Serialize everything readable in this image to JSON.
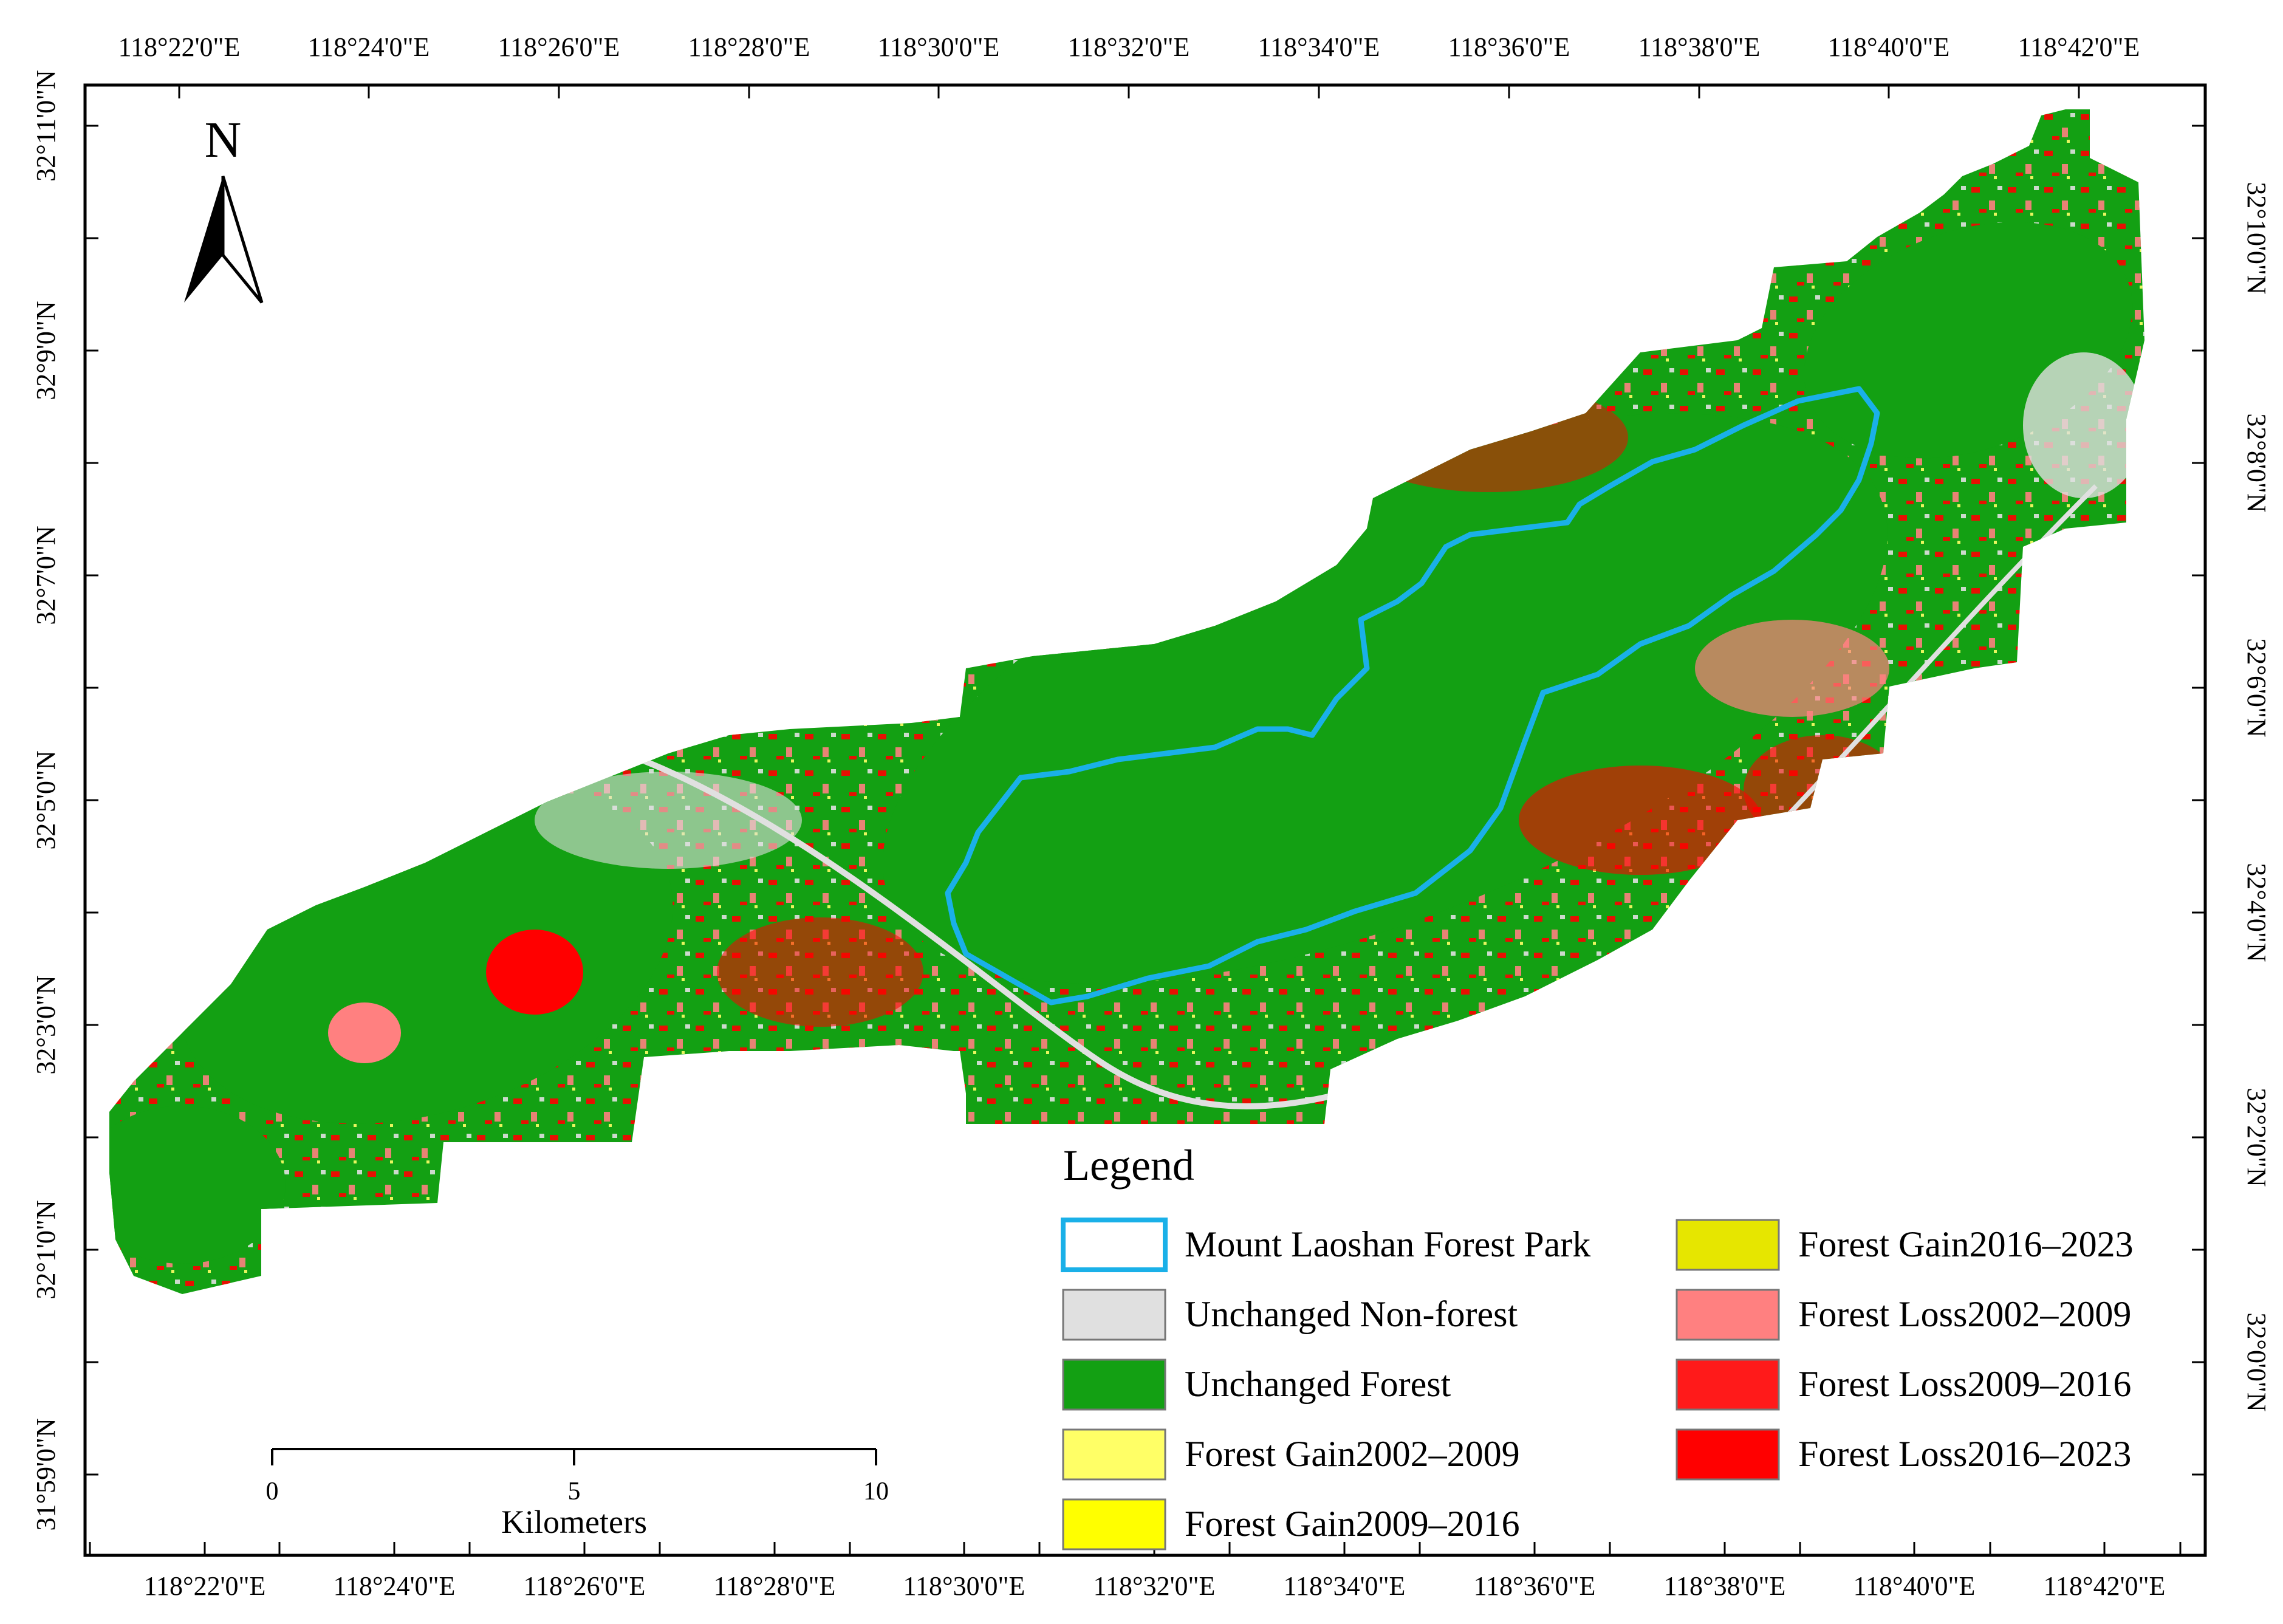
{
  "map": {
    "top_labels": [
      "118°22'0\"E",
      "118°24'0\"E",
      "118°26'0\"E",
      "118°28'0\"E",
      "118°30'0\"E",
      "118°32'0\"E",
      "118°34'0\"E",
      "118°36'0\"E",
      "118°38'0\"E",
      "118°40'0\"E",
      "118°42'0\"E"
    ],
    "bottom_labels": [
      "118°22'0\"E",
      "118°24'0\"E",
      "118°26'0\"E",
      "118°28'0\"E",
      "118°30'0\"E",
      "118°32'0\"E",
      "118°34'0\"E",
      "118°36'0\"E",
      "118°38'0\"E",
      "118°40'0\"E",
      "118°42'0\"E"
    ],
    "left_labels": [
      "32°11'0\"N",
      "32°9'0\"N",
      "32°7'0\"N",
      "32°5'0\"N",
      "32°3'0\"N",
      "32°1'0\"N",
      "31°59'0\"N"
    ],
    "right_labels": [
      "32°10'0\"N",
      "32°8'0\"N",
      "32°6'0\"N",
      "32°4'0\"N",
      "32°2'0\"N",
      "32°0'0\"N"
    ],
    "north_label": "N"
  },
  "scale_bar": {
    "ticks": [
      "0",
      "5",
      "10"
    ],
    "unit": "Kilometers"
  },
  "legend": {
    "title": "Legend",
    "items": [
      {
        "label": "Mount Laoshan Forest Park",
        "color": "#ffffff",
        "stroke": "#1ab0e8"
      },
      {
        "label": "Unchanged Non-forest",
        "color": "#e0e0e0",
        "stroke": "#777777"
      },
      {
        "label": "Unchanged Forest",
        "color": "#13a013",
        "stroke": "#777777"
      },
      {
        "label": "Forest Gain2002–2009",
        "color": "#ffff66",
        "stroke": "#777777"
      },
      {
        "label": "Forest Gain2009–2016",
        "color": "#ffff00",
        "stroke": "#777777"
      },
      {
        "label": "Forest Gain2016–2023",
        "color": "#e6e600",
        "stroke": "#777777"
      },
      {
        "label": "Forest Loss2002–2009",
        "color": "#ff8080",
        "stroke": "#777777"
      },
      {
        "label": "Forest Loss2009–2016",
        "color": "#ff1a1a",
        "stroke": "#777777"
      },
      {
        "label": "Forest Loss2016–2023",
        "color": "#ff0000",
        "stroke": "#777777"
      }
    ]
  },
  "colors": {
    "forest": "#13a013",
    "nonforest": "#e0e0e0",
    "loss_light": "#ff8080",
    "loss": "#ff0000",
    "gain": "#ffff66",
    "park_outline": "#1ab0e8"
  }
}
